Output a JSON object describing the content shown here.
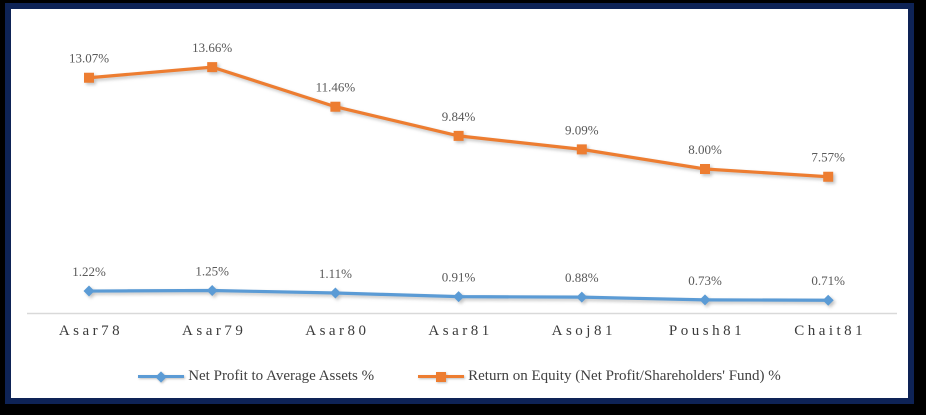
{
  "frame": {
    "border_color": "#0E2356",
    "outer_background": "#000000",
    "background": "#FFFFFF"
  },
  "chart_data": {
    "type": "line",
    "title": "",
    "xlabel": "",
    "ylabel": "",
    "categories": [
      "Asar78",
      "Asar79",
      "Asar80",
      "Asar81",
      "Asoj81",
      "Poush81",
      "Chait81"
    ],
    "series": [
      {
        "name": "Net Profit to Average Assets %",
        "color": "#5B9BD5",
        "marker": "diamond",
        "values": [
          1.22,
          1.25,
          1.11,
          0.91,
          0.88,
          0.73,
          0.71
        ],
        "labels": [
          "1.22%",
          "1.25%",
          "1.11%",
          "0.91%",
          "0.88%",
          "0.73%",
          "0.71%"
        ]
      },
      {
        "name": "Return on Equity (Net Profit/Shareholders' Fund) %",
        "color": "#ED7D31",
        "marker": "square",
        "values": [
          13.07,
          13.66,
          11.46,
          9.84,
          9.09,
          8.0,
          7.57
        ],
        "labels": [
          "13.07%",
          "13.66%",
          "11.46%",
          "9.84%",
          "9.09%",
          "8.00%",
          "7.57%"
        ]
      }
    ],
    "ylim": [
      0,
      16.5
    ],
    "grid": false,
    "legend_position": "bottom",
    "axis_line_color": "#D9D9D9",
    "data_label_color": "#595959",
    "tick_label_color": "#3B3B3B"
  }
}
